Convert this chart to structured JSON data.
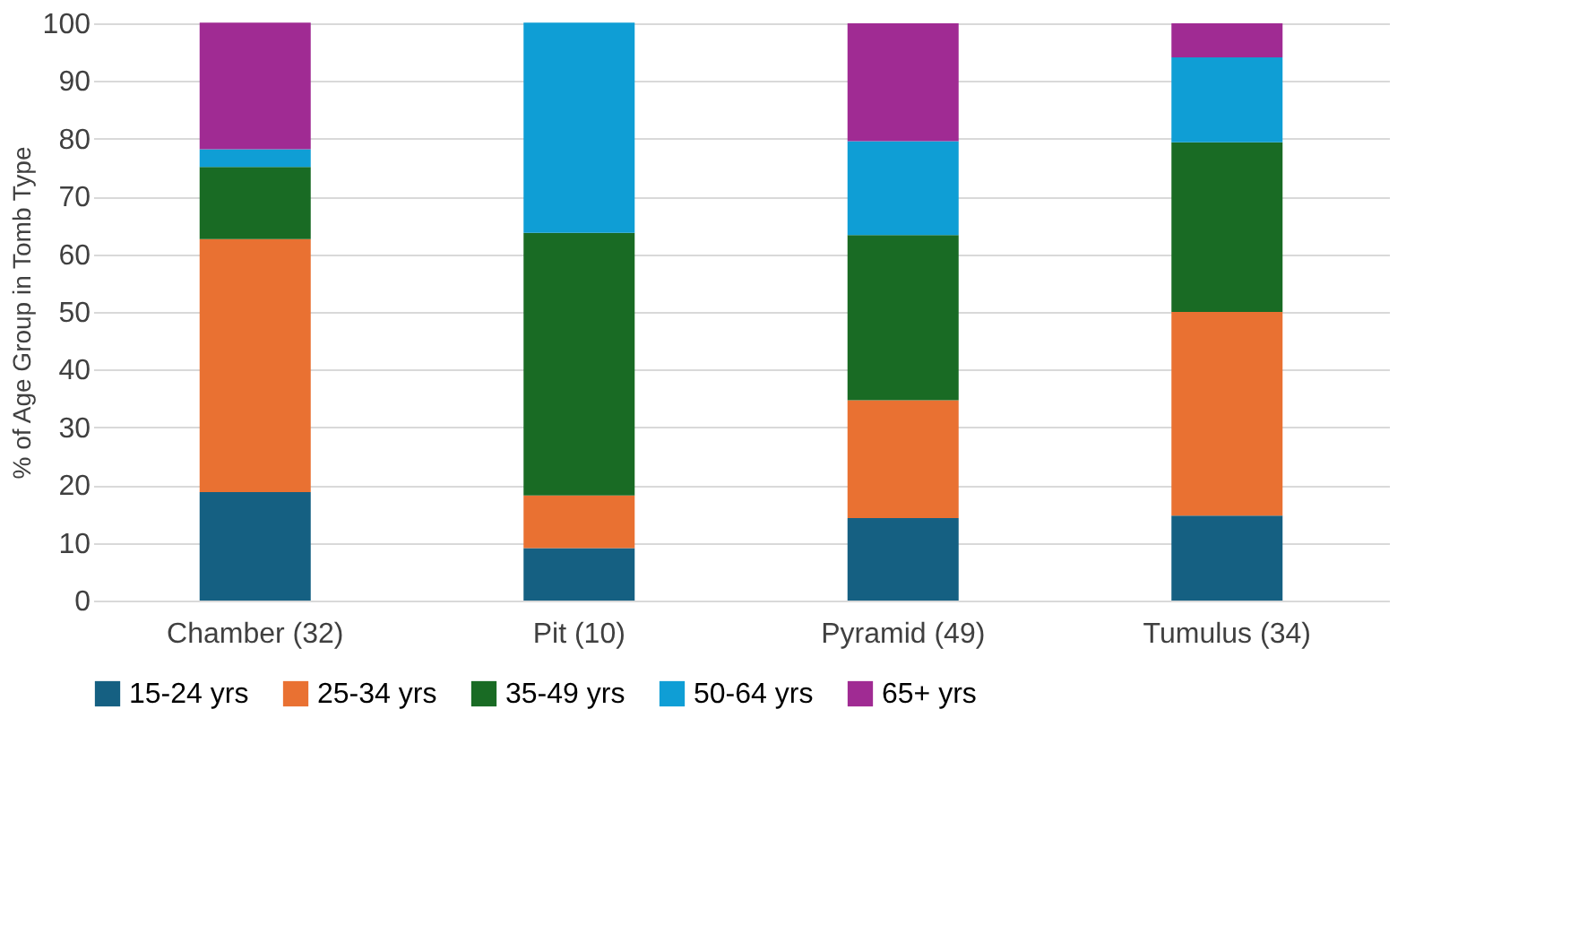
{
  "chart_data": {
    "type": "bar",
    "stacked": true,
    "ylabel": "% of Age Group in Tomb Type",
    "categories": [
      "Chamber (32)",
      "Pit (10)",
      "Pyramid  (49)",
      "Tumulus (34)"
    ],
    "series": [
      {
        "name": "15-24 yrs",
        "color": "#156082",
        "values": [
          18.8,
          9.1,
          14.3,
          14.7
        ]
      },
      {
        "name": "25-34 yrs",
        "color": "#e97132",
        "values": [
          43.8,
          9.1,
          20.4,
          35.3
        ]
      },
      {
        "name": "35-49 yrs",
        "color": "#196b24",
        "values": [
          12.5,
          45.5,
          28.6,
          29.4
        ]
      },
      {
        "name": "50-64 yrs",
        "color": "#0f9ed5",
        "values": [
          3.1,
          36.4,
          16.3,
          14.7
        ]
      },
      {
        "name": "65+ yrs",
        "color": "#a02b93",
        "values": [
          21.9,
          0,
          20.4,
          5.9
        ]
      }
    ],
    "ylim": [
      0,
      100
    ],
    "yticks": [
      0,
      10,
      20,
      30,
      40,
      50,
      60,
      70,
      80,
      90,
      100
    ],
    "grid": "y",
    "legend": "bottom"
  }
}
